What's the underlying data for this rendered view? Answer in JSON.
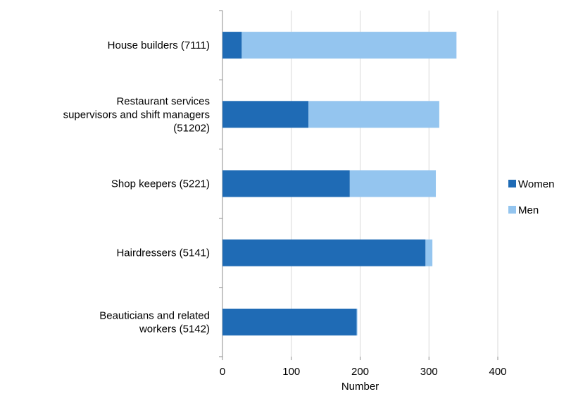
{
  "chart_data": {
    "type": "bar",
    "orientation": "horizontal",
    "stacked": true,
    "categories": [
      "House builders (7111)",
      "Restaurant services supervisors and shift managers (51202)",
      "Shop keepers (5221)",
      "Hairdressers (5141)",
      "Beauticians and related workers (5142)"
    ],
    "category_lines": [
      [
        "House builders (7111)"
      ],
      [
        "Restaurant services",
        "supervisors and shift managers",
        "(51202)"
      ],
      [
        "Shop keepers (5221)"
      ],
      [
        "Hairdressers (5141)"
      ],
      [
        "Beauticians and related",
        "workers (5142)"
      ]
    ],
    "series": [
      {
        "name": "Women",
        "color": "#1f6bb5",
        "values": [
          28,
          125,
          185,
          295,
          195
        ]
      },
      {
        "name": "Men",
        "color": "#94c5ef",
        "values": [
          312,
          190,
          125,
          10,
          1
        ]
      }
    ],
    "xlabel": "Number",
    "ylabel": "",
    "title": "",
    "xlim": [
      0,
      400
    ],
    "xticks": [
      0,
      100,
      200,
      300,
      400
    ],
    "grid": "vertical",
    "legend_position": "right"
  }
}
